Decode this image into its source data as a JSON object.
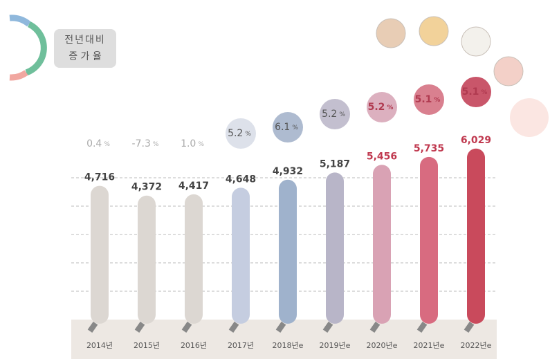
{
  "chart_data": {
    "type": "bar",
    "legend_label": [
      "전년대비",
      "증 가 율"
    ],
    "categories": [
      "2014년",
      "2015년",
      "2016년",
      "2017년",
      "2018년e",
      "2019년e",
      "2020년e",
      "2021년e",
      "2022년e"
    ],
    "values": [
      4716,
      4372,
      4417,
      4648,
      4932,
      5187,
      5456,
      5735,
      6029
    ],
    "value_labels": [
      "4,716",
      "4,372",
      "4,417",
      "4,648",
      "4,932",
      "5,187",
      "5,456",
      "5,735",
      "6,029"
    ],
    "colors": [
      "#dcd7d2",
      "#dcd7d2",
      "#dcd7d2",
      "#c5cde0",
      "#9fb2cc",
      "#b8b5c8",
      "#d9a2b4",
      "#d86b80",
      "#c94a5c"
    ],
    "growth": [
      0.4,
      -7.3,
      1.0,
      5.2,
      6.1,
      5.2,
      5.2,
      5.1,
      5.1
    ],
    "growth_labels": [
      "0.4",
      "-7.3",
      "1.0",
      "5.2",
      "6.1",
      "5.2",
      "5.2",
      "5.1",
      "5.1"
    ],
    "growth_unit": "%",
    "bubble_colors": [
      null,
      null,
      null,
      "#dde1ea",
      "#aebbd0",
      "#c3bfcf",
      "#dcb0bf",
      "#d9808f",
      "#c9566a"
    ],
    "ylim": [
      0,
      6000
    ],
    "yticks": [
      1000,
      2000,
      3000,
      4000,
      5000
    ],
    "grid": true
  }
}
